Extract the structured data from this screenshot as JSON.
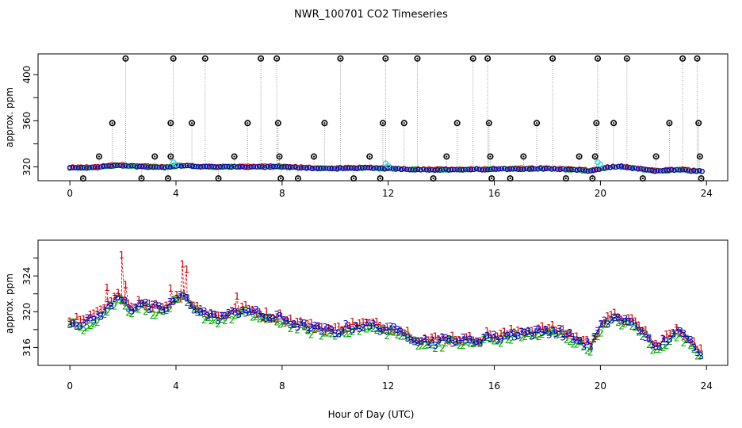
{
  "chart_data": [
    {
      "type": "scatter",
      "title": "NWR_100701  CO2 Timeseries",
      "xlabel": "",
      "ylabel": "approx. ppm",
      "xlim": [
        -1.2,
        24.8
      ],
      "ylim": [
        308,
        418
      ],
      "xticks": [
        0,
        4,
        8,
        12,
        16,
        20,
        24
      ],
      "yticks": [
        320,
        360,
        400
      ],
      "yticks_minor": [
        340,
        380
      ],
      "baseline_pairs": [
        [
          0.0,
          319
        ],
        [
          1.0,
          319.5
        ],
        [
          1.8,
          321.5
        ],
        [
          2.5,
          320.5
        ],
        [
          3.5,
          319.5
        ],
        [
          4.3,
          321
        ],
        [
          5.0,
          320
        ],
        [
          6.0,
          320
        ],
        [
          7.0,
          320
        ],
        [
          7.9,
          320
        ],
        [
          9.0,
          319
        ],
        [
          10.0,
          318.5
        ],
        [
          11.0,
          319
        ],
        [
          12.0,
          318.5
        ],
        [
          13.0,
          317.8
        ],
        [
          14.0,
          317.5
        ],
        [
          15.0,
          317.5
        ],
        [
          16.0,
          318
        ],
        [
          17.0,
          318.3
        ],
        [
          18.0,
          318.5
        ],
        [
          19.0,
          317.5
        ],
        [
          19.6,
          316.5
        ],
        [
          20.3,
          319.5
        ],
        [
          20.8,
          320
        ],
        [
          21.5,
          318
        ],
        [
          22.0,
          316.5
        ],
        [
          22.5,
          316.8
        ],
        [
          23.0,
          317.5
        ],
        [
          23.5,
          316.5
        ],
        [
          23.9,
          316
        ]
      ],
      "spikes": [
        [
          0.5,
          310
        ],
        [
          1.1,
          329
        ],
        [
          1.6,
          358
        ],
        [
          2.1,
          414
        ],
        [
          2.7,
          310
        ],
        [
          3.2,
          329
        ],
        [
          3.7,
          310
        ],
        [
          3.8,
          329
        ],
        [
          3.8,
          358
        ],
        [
          3.9,
          414
        ],
        [
          4.6,
          358
        ],
        [
          5.1,
          414
        ],
        [
          5.6,
          310
        ],
        [
          6.2,
          329
        ],
        [
          6.7,
          358
        ],
        [
          7.2,
          414
        ],
        [
          7.8,
          414
        ],
        [
          7.85,
          358
        ],
        [
          7.9,
          329
        ],
        [
          7.95,
          310
        ],
        [
          8.6,
          310
        ],
        [
          9.2,
          329
        ],
        [
          9.6,
          358
        ],
        [
          10.2,
          414
        ],
        [
          10.7,
          310
        ],
        [
          11.3,
          329
        ],
        [
          11.7,
          310
        ],
        [
          11.8,
          358
        ],
        [
          11.9,
          414
        ],
        [
          12.6,
          358
        ],
        [
          13.1,
          414
        ],
        [
          13.7,
          310
        ],
        [
          14.2,
          329
        ],
        [
          14.6,
          358
        ],
        [
          15.2,
          414
        ],
        [
          15.75,
          414
        ],
        [
          15.8,
          358
        ],
        [
          15.85,
          329
        ],
        [
          15.9,
          310
        ],
        [
          16.6,
          310
        ],
        [
          17.1,
          329
        ],
        [
          17.6,
          358
        ],
        [
          18.2,
          414
        ],
        [
          18.7,
          310
        ],
        [
          19.2,
          329
        ],
        [
          19.7,
          310
        ],
        [
          19.8,
          329
        ],
        [
          19.85,
          358
        ],
        [
          19.9,
          414
        ],
        [
          20.5,
          358
        ],
        [
          21.0,
          414
        ],
        [
          21.6,
          310
        ],
        [
          22.1,
          329
        ],
        [
          22.6,
          358
        ],
        [
          23.1,
          414
        ],
        [
          23.65,
          414
        ],
        [
          23.7,
          358
        ],
        [
          23.75,
          329
        ],
        [
          23.8,
          310
        ]
      ],
      "markers": [
        "black-circle-spikes",
        "red-circles",
        "green-circles",
        "blue-circles",
        "cyan-circles"
      ]
    },
    {
      "type": "scatter",
      "xlabel": "Hour of Day (UTC)",
      "ylabel": "approx. ppm",
      "xlim": [
        -1.2,
        24.8
      ],
      "ylim": [
        314,
        328
      ],
      "xticks": [
        0,
        4,
        8,
        12,
        16,
        20,
        24
      ],
      "yticks": [
        316,
        320,
        324
      ],
      "yticks_minor": [
        318,
        322,
        326
      ],
      "baseline_pairs": [
        [
          0.0,
          318.9
        ],
        [
          0.5,
          318.6
        ],
        [
          1.0,
          319.4
        ],
        [
          1.5,
          320.6
        ],
        [
          1.8,
          321.5
        ],
        [
          2.0,
          321.6
        ],
        [
          2.3,
          320.2
        ],
        [
          2.6,
          321
        ],
        [
          3.0,
          320.4
        ],
        [
          3.5,
          320.2
        ],
        [
          4.0,
          321.4
        ],
        [
          4.3,
          321.7
        ],
        [
          4.6,
          320.6
        ],
        [
          5.0,
          319.9
        ],
        [
          5.5,
          319.3
        ],
        [
          6.0,
          319.6
        ],
        [
          6.5,
          320.2
        ],
        [
          7.0,
          319.8
        ],
        [
          7.5,
          319.3
        ],
        [
          8.0,
          319.2
        ],
        [
          8.5,
          318.6
        ],
        [
          9.0,
          318.2
        ],
        [
          10.0,
          317.7
        ],
        [
          10.5,
          318.3
        ],
        [
          11.0,
          318.4
        ],
        [
          11.5,
          318.3
        ],
        [
          12.0,
          318.0
        ],
        [
          12.6,
          317.6
        ],
        [
          13.0,
          317.0
        ],
        [
          13.5,
          316.6
        ],
        [
          14.0,
          316.7
        ],
        [
          14.5,
          316.9
        ],
        [
          15.0,
          316.6
        ],
        [
          15.5,
          316.9
        ],
        [
          15.8,
          317.3
        ],
        [
          16.0,
          317.0
        ],
        [
          16.5,
          317.3
        ],
        [
          17.0,
          317.7
        ],
        [
          17.5,
          317.6
        ],
        [
          18.0,
          317.9
        ],
        [
          18.5,
          317.7
        ],
        [
          19.0,
          317.0
        ],
        [
          19.6,
          316.1
        ],
        [
          20.0,
          318.3
        ],
        [
          20.5,
          319.3
        ],
        [
          20.8,
          319.1
        ],
        [
          21.2,
          318.6
        ],
        [
          21.7,
          317.6
        ],
        [
          22.0,
          315.7
        ],
        [
          22.3,
          316.5
        ],
        [
          22.7,
          317.4
        ],
        [
          23.0,
          317.6
        ],
        [
          23.4,
          316.6
        ],
        [
          23.8,
          315.4
        ]
      ],
      "series": [
        {
          "name": "1",
          "color": "#dd0000",
          "spikes": [
            [
              1.4,
              322.7
            ],
            [
              1.95,
              326.3
            ],
            [
              2.1,
              323.0
            ],
            [
              3.8,
              322.6
            ],
            [
              4.25,
              325.3
            ],
            [
              4.4,
              324.7
            ],
            [
              6.3,
              321.7
            ]
          ]
        },
        {
          "name": "2",
          "color": "#00aa00"
        },
        {
          "name": "3",
          "color": "#0000cc"
        }
      ]
    }
  ]
}
